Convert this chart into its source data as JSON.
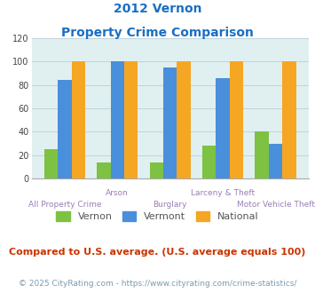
{
  "title_line1": "2012 Vernon",
  "title_line2": "Property Crime Comparison",
  "categories": [
    "All Property Crime",
    "Arson",
    "Burglary",
    "Larceny & Theft",
    "Motor Vehicle Theft"
  ],
  "vernon": [
    25,
    14,
    14,
    28,
    40
  ],
  "vermont": [
    84,
    100,
    95,
    86,
    30
  ],
  "national": [
    100,
    100,
    100,
    100,
    100
  ],
  "bar_colors": {
    "Vernon": "#7dc242",
    "Vermont": "#4a8fdb",
    "National": "#f5a623"
  },
  "ylim": [
    0,
    120
  ],
  "yticks": [
    0,
    20,
    40,
    60,
    80,
    100,
    120
  ],
  "background_color": "#e0eff0",
  "grid_color": "#c0d5d8",
  "title_color": "#1a6fc4",
  "xlabel_color": "#9a7fb5",
  "footer_text": "Compared to U.S. average. (U.S. average equals 100)",
  "footer_color": "#cc3300",
  "credit_text": "© 2025 CityRating.com - https://www.cityrating.com/crime-statistics/",
  "credit_color": "#7a9ab0",
  "title_fontsize": 10,
  "legend_fontsize": 8,
  "footer_fontsize": 8,
  "credit_fontsize": 6.5,
  "xlabel_fontsize": 6.5
}
